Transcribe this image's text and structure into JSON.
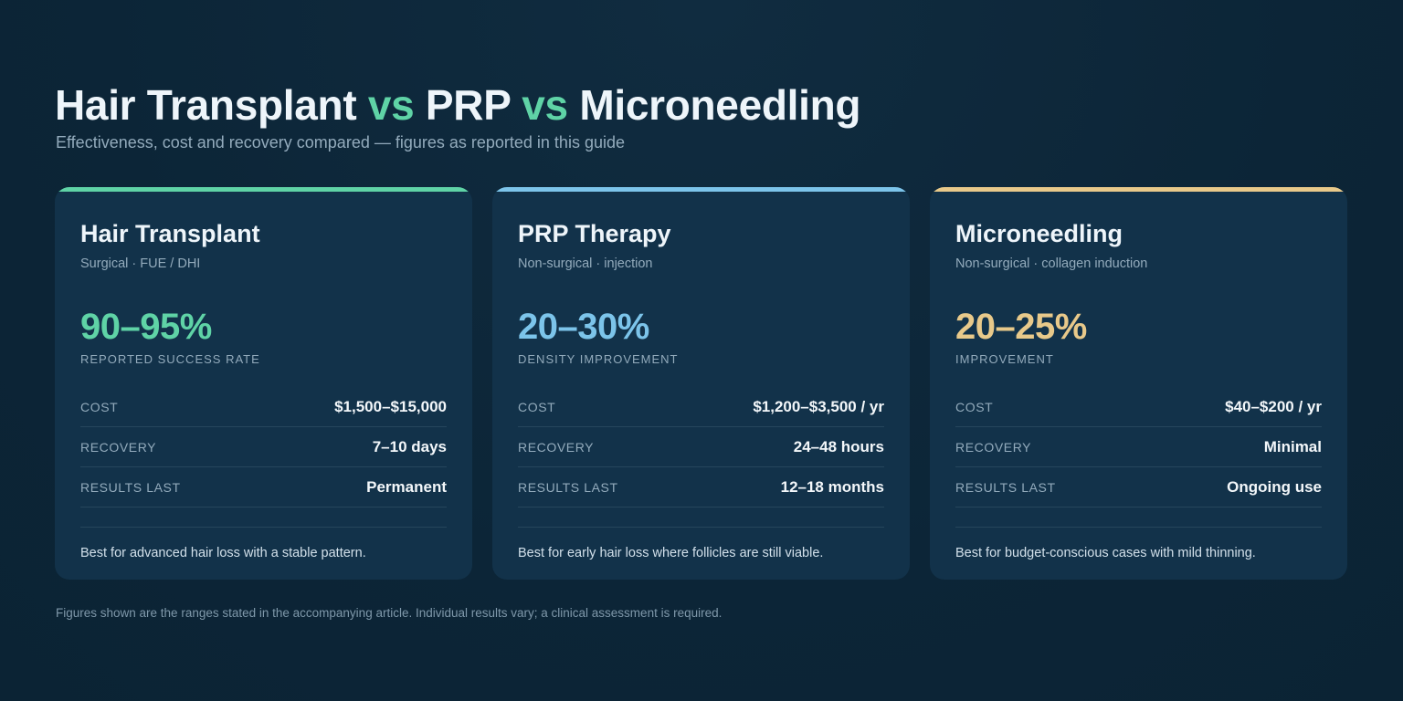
{
  "header": {
    "title_parts": [
      "Hair Transplant",
      "vs",
      "PRP",
      "vs",
      "Microneedling"
    ],
    "subtitle": "Effectiveness, cost and recovery compared — figures as reported in this guide"
  },
  "cards": [
    {
      "name": "Hair Transplant",
      "subtitle": "Surgical · FUE / DHI",
      "metric": "90–95%",
      "metric_label": "REPORTED SUCCESS RATE",
      "accent_color": "#5fd3a6",
      "rows": [
        {
          "label": "COST",
          "value": "$1,500–$15,000"
        },
        {
          "label": "RECOVERY",
          "value": "7–10 days"
        },
        {
          "label": "RESULTS LAST",
          "value": "Permanent"
        }
      ],
      "best_for": "Best for advanced hair loss with a stable pattern."
    },
    {
      "name": "PRP Therapy",
      "subtitle": "Non-surgical · injection",
      "metric": "20–30%",
      "metric_label": "DENSITY IMPROVEMENT",
      "accent_color": "#7cc4ea",
      "rows": [
        {
          "label": "COST",
          "value": "$1,200–$3,500 / yr"
        },
        {
          "label": "RECOVERY",
          "value": "24–48 hours"
        },
        {
          "label": "RESULTS LAST",
          "value": "12–18 months"
        }
      ],
      "best_for": "Best for early hair loss where follicles are still viable."
    },
    {
      "name": "Microneedling",
      "subtitle": "Non-surgical · collagen induction",
      "metric": "20–25%",
      "metric_label": "IMPROVEMENT",
      "accent_color": "#e8c98a",
      "rows": [
        {
          "label": "COST",
          "value": "$40–$200 / yr"
        },
        {
          "label": "RECOVERY",
          "value": "Minimal"
        },
        {
          "label": "RESULTS LAST",
          "value": "Ongoing use"
        }
      ],
      "best_for": "Best for budget-conscious cases with mild thinning."
    }
  ],
  "footnote": "Figures shown are the ranges stated in the accompanying article. Individual results vary; a clinical assessment is required."
}
